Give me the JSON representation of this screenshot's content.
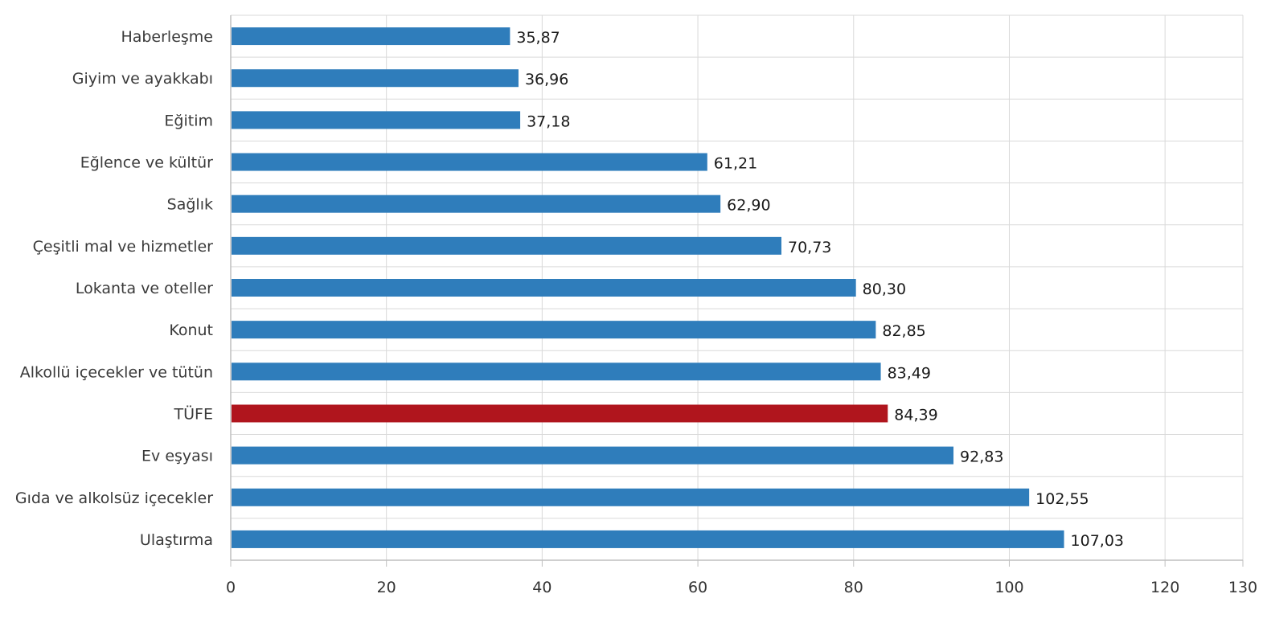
{
  "chart_data": {
    "type": "bar",
    "orientation": "horizontal",
    "categories": [
      "Haberleşme",
      "Giyim ve ayakkabı",
      "Eğitim",
      "Eğlence ve kültür",
      "Sağlık",
      "Çeşitli mal ve hizmetler",
      "Lokanta ve oteller",
      "Konut",
      "Alkollü içecekler ve tütün",
      "TÜFE",
      "Ev eşyası",
      "Gıda ve alkolsüz içecekler",
      "Ulaştırma"
    ],
    "values": [
      35.87,
      36.96,
      37.18,
      61.21,
      62.9,
      70.73,
      80.3,
      82.85,
      83.49,
      84.39,
      92.83,
      102.55,
      107.03
    ],
    "value_labels": [
      "35,87",
      "36,96",
      "37,18",
      "61,21",
      "62,90",
      "70,73",
      "80,30",
      "82,85",
      "83,49",
      "84,39",
      "92,83",
      "102,55",
      "107,03"
    ],
    "xlim": [
      0,
      130
    ],
    "x_ticks": [
      0,
      20,
      40,
      60,
      80,
      100,
      120,
      130
    ],
    "title": "",
    "xlabel": "",
    "ylabel": "",
    "grid": true,
    "legend": "none",
    "colors": {
      "default_bar": "#2f7dbb",
      "highlight_bar": "#b0151d",
      "grid": "#d9d9d9",
      "axis": "#bfbfbf"
    },
    "highlight_category": "TÜFE"
  }
}
